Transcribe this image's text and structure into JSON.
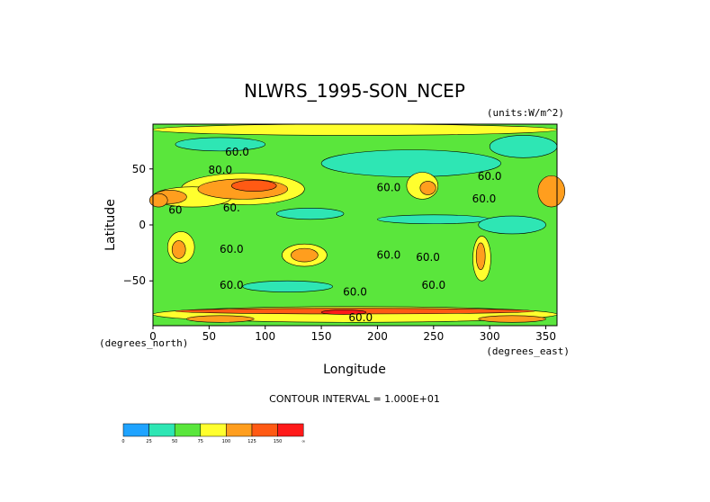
{
  "chart_data": {
    "type": "heatmap",
    "title": "NLWRS_1995-SON_NCEP",
    "units": "(units:W/m^2)",
    "xlabel": "Longitude",
    "ylabel": "Latitude",
    "x_unit_label": "(degrees_east)",
    "y_unit_label": "(degrees_north)",
    "xlim": [
      0,
      360
    ],
    "ylim": [
      -90,
      90
    ],
    "xticks": [
      0,
      50,
      100,
      150,
      200,
      250,
      300,
      350
    ],
    "yticks": [
      -50,
      0,
      50
    ],
    "contour_interval_text": "CONTOUR INTERVAL = 1.000E+01",
    "contour_labels": [
      {
        "lon": 75,
        "lat": 62,
        "text": "60.0"
      },
      {
        "lon": 60,
        "lat": 46,
        "text": "80.0"
      },
      {
        "lon": 210,
        "lat": 30,
        "text": "60.0"
      },
      {
        "lon": 300,
        "lat": 40,
        "text": "60.0"
      },
      {
        "lon": 295,
        "lat": 20,
        "text": "60.0"
      },
      {
        "lon": 70,
        "lat": 12,
        "text": "60."
      },
      {
        "lon": 20,
        "lat": 10,
        "text": "60"
      },
      {
        "lon": 70,
        "lat": -25,
        "text": "60.0"
      },
      {
        "lon": 210,
        "lat": -30,
        "text": "60.0"
      },
      {
        "lon": 245,
        "lat": -32,
        "text": "60.0"
      },
      {
        "lon": 250,
        "lat": -57,
        "text": "60.0"
      },
      {
        "lon": 70,
        "lat": -57,
        "text": "60.0"
      },
      {
        "lon": 180,
        "lat": -63,
        "text": "60.0"
      },
      {
        "lon": 185,
        "lat": -86,
        "text": "60.0"
      }
    ],
    "colorbar": {
      "colors": [
        "#1fa3ff",
        "#2ee6b4",
        "#5ae63c",
        "#ffff2e",
        "#ff9e1e",
        "#ff5a14",
        "#ff1a1a"
      ],
      "labels": [
        "0",
        "25",
        "50",
        "75",
        "100",
        "125",
        "150",
        "∞"
      ]
    }
  }
}
